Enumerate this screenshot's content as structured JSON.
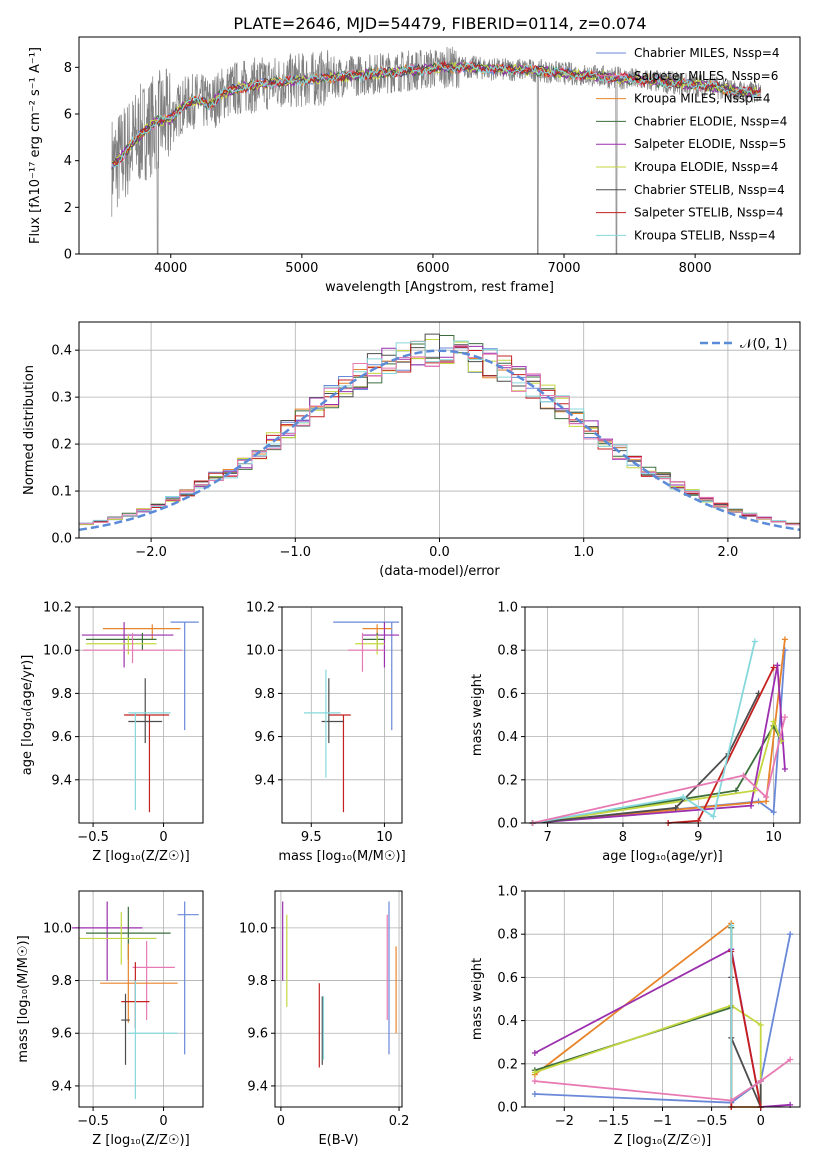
{
  "title": "PLATE=2646, MJD=54479, FIBERID=0114, z=0.074",
  "colors": [
    "#6a88d8",
    "#e8842a",
    "#3c6e3c",
    "#9b2fae",
    "#c4d640",
    "#4d4d4d",
    "#c42020",
    "#86d8dc",
    "#e87ab3",
    "#7f7f7f"
  ],
  "chart_data": [
    {
      "type": "line",
      "id": "spectrum",
      "xlabel": "wavelength [Angstrom, rest frame]",
      "ylabel": "Flux [fλ10⁻¹⁷ erg cm⁻² s⁻¹ A⁻¹]",
      "xlim": [
        3300,
        8800
      ],
      "ylim": [
        0,
        9.3
      ],
      "xticks": [
        4000,
        5000,
        6000,
        7000,
        8000
      ],
      "yticks": [
        0,
        2,
        4,
        6,
        8
      ],
      "legend_position": "right",
      "data_color": "#7f7f7f",
      "series": [
        {
          "name": "Chabrier MILES, N_SSP=4",
          "color": "#6a88d8"
        },
        {
          "name": "Salpeter MILES, N_SSP=6",
          "color": "#e87ab3"
        },
        {
          "name": "Kroupa MILES, N_SSP=4",
          "color": "#e8842a"
        },
        {
          "name": "Chabrier ELODIE, N_SSP=4",
          "color": "#3c6e3c"
        },
        {
          "name": "Salpeter ELODIE, N_SSP=5",
          "color": "#9b2fae"
        },
        {
          "name": "Kroupa ELODIE, N_SSP=4",
          "color": "#c4d640"
        },
        {
          "name": "Chabrier STELIB, N_SSP=4",
          "color": "#4d4d4d"
        },
        {
          "name": "Salpeter STELIB, N_SSP=4",
          "color": "#c42020"
        },
        {
          "name": "Kroupa STELIB, N_SSP=4",
          "color": "#86d8dc"
        }
      ],
      "continuum": [
        [
          3550,
          3.8
        ],
        [
          3600,
          4.0
        ],
        [
          3700,
          4.7
        ],
        [
          3800,
          5.3
        ],
        [
          3900,
          5.7
        ],
        [
          4000,
          5.8
        ],
        [
          4100,
          6.4
        ],
        [
          4200,
          6.6
        ],
        [
          4300,
          6.4
        ],
        [
          4400,
          6.9
        ],
        [
          4500,
          7.1
        ],
        [
          4700,
          7.3
        ],
        [
          4900,
          7.4
        ],
        [
          5100,
          7.5
        ],
        [
          5300,
          7.6
        ],
        [
          5500,
          7.7
        ],
        [
          5700,
          7.8
        ],
        [
          5900,
          7.9
        ],
        [
          6100,
          8.0
        ],
        [
          6300,
          8.0
        ],
        [
          6500,
          7.9
        ],
        [
          6700,
          7.9
        ],
        [
          6900,
          7.8
        ],
        [
          7100,
          7.7
        ],
        [
          7300,
          7.6
        ],
        [
          7500,
          7.5
        ],
        [
          7700,
          7.4
        ],
        [
          7900,
          7.3
        ],
        [
          8100,
          7.2
        ],
        [
          8300,
          7.0
        ],
        [
          8450,
          6.9
        ],
        [
          8500,
          7.0
        ]
      ]
    },
    {
      "type": "bar",
      "id": "residual-histogram",
      "xlabel": "(data-model)/error",
      "ylabel": "Normed distribution",
      "xlim": [
        -2.5,
        2.5
      ],
      "ylim": [
        0,
        0.46
      ],
      "xticks": [
        -2,
        -1,
        0,
        1,
        2
      ],
      "yticks": [
        0.0,
        0.1,
        0.2,
        0.3,
        0.4
      ],
      "grid": true,
      "legend_position": "top-right",
      "reference_curve": {
        "name": "𝒩(0, 1)",
        "mu": 0,
        "sigma": 1,
        "color": "#5b8bd8"
      },
      "bin_width": 0.1
    },
    {
      "type": "scatter",
      "id": "age-vs-Z",
      "xlabel": "Z [log₁₀(Z/Z☉)]",
      "ylabel": "age  [log₁₀(age/yr)]",
      "xlim": [
        -0.6,
        0.28
      ],
      "ylim": [
        9.2,
        10.2
      ],
      "xticks": [
        -0.5,
        0.0
      ],
      "yticks": [
        9.4,
        9.6,
        9.8,
        10.0,
        10.2
      ],
      "grid": true,
      "points": [
        {
          "x": 0.15,
          "y": 10.13,
          "xerr": [
            0.1,
            0.1
          ],
          "yerr": [
            0.5,
            0.0
          ],
          "color": "#6a88d8"
        },
        {
          "x": -0.08,
          "y": 10.1,
          "xerr": [
            0.35,
            0.2
          ],
          "yerr": [
            0.05,
            0.02
          ],
          "color": "#e8842a"
        },
        {
          "x": -0.28,
          "y": 10.07,
          "xerr": [
            0.3,
            0.35
          ],
          "yerr": [
            0.15,
            0.06
          ],
          "color": "#9b2fae"
        },
        {
          "x": -0.15,
          "y": 10.05,
          "xerr": [
            0.4,
            0.1
          ],
          "yerr": [
            0.05,
            0.03
          ],
          "color": "#3c6e3c"
        },
        {
          "x": -0.25,
          "y": 10.03,
          "xerr": [
            0.3,
            0.2
          ],
          "yerr": [
            0.05,
            0.04
          ],
          "color": "#c4d640"
        },
        {
          "x": -0.22,
          "y": 10.0,
          "xerr": [
            0.35,
            0.35
          ],
          "yerr": [
            0.06,
            0.08
          ],
          "color": "#e87ab3"
        },
        {
          "x": -0.1,
          "y": 9.7,
          "xerr": [
            0.18,
            0.14
          ],
          "yerr": [
            0.45,
            0.0
          ],
          "color": "#c42020"
        },
        {
          "x": -0.13,
          "y": 9.67,
          "xerr": [
            0.12,
            0.12
          ],
          "yerr": [
            0.1,
            0.2
          ],
          "color": "#4d4d4d"
        },
        {
          "x": -0.2,
          "y": 9.71,
          "xerr": [
            0.05,
            0.25
          ],
          "yerr": [
            0.45,
            0.0
          ],
          "color": "#86d8dc"
        }
      ]
    },
    {
      "type": "scatter",
      "id": "age-vs-mass",
      "xlabel": "mass [log₁₀(M/M☉)]",
      "ylabel": "",
      "xlim": [
        9.3,
        10.12
      ],
      "ylim": [
        9.2,
        10.2
      ],
      "xticks": [
        9.5,
        10.0
      ],
      "yticks": [
        9.4,
        9.6,
        9.8,
        10.0,
        10.2
      ],
      "grid": true,
      "points": [
        {
          "x": 10.05,
          "y": 10.13,
          "xerr": [
            0.4,
            0.05
          ],
          "yerr": [
            0.5,
            0.0
          ],
          "color": "#6a88d8"
        },
        {
          "x": 9.95,
          "y": 10.1,
          "xerr": [
            0.1,
            0.1
          ],
          "yerr": [
            0.05,
            0.02
          ],
          "color": "#e8842a"
        },
        {
          "x": 10.0,
          "y": 10.07,
          "xerr": [
            0.15,
            0.1
          ],
          "yerr": [
            0.15,
            0.06
          ],
          "color": "#9b2fae"
        },
        {
          "x": 9.95,
          "y": 10.05,
          "xerr": [
            0.1,
            0.05
          ],
          "yerr": [
            0.05,
            0.03
          ],
          "color": "#3c6e3c"
        },
        {
          "x": 9.95,
          "y": 10.03,
          "xerr": [
            0.15,
            0.05
          ],
          "yerr": [
            0.05,
            0.04
          ],
          "color": "#c4d640"
        },
        {
          "x": 9.85,
          "y": 10.0,
          "xerr": [
            0.1,
            0.15
          ],
          "yerr": [
            0.1,
            0.08
          ],
          "color": "#e87ab3"
        },
        {
          "x": 9.72,
          "y": 9.7,
          "xerr": [
            0.1,
            0.05
          ],
          "yerr": [
            0.45,
            0.0
          ],
          "color": "#c42020"
        },
        {
          "x": 9.62,
          "y": 9.67,
          "xerr": [
            0.05,
            0.1
          ],
          "yerr": [
            0.1,
            0.2
          ],
          "color": "#4d4d4d"
        },
        {
          "x": 9.6,
          "y": 9.71,
          "xerr": [
            0.15,
            0.1
          ],
          "yerr": [
            0.3,
            0.2
          ],
          "color": "#86d8dc"
        }
      ]
    },
    {
      "type": "line",
      "id": "mass-weight-vs-age",
      "xlabel": "age  [log₁₀(age/yr)]",
      "ylabel": "mass weight",
      "xlim": [
        6.7,
        10.35
      ],
      "ylim": [
        0,
        1
      ],
      "xticks": [
        7,
        8,
        9,
        10
      ],
      "yticks": [
        0.0,
        0.2,
        0.4,
        0.6,
        0.8,
        1.0
      ],
      "grid": true,
      "series": [
        {
          "color": "#6a88d8",
          "x": [
            6.8,
            9.8,
            10.0,
            10.15
          ],
          "y": [
            0.0,
            0.1,
            0.05,
            0.8
          ]
        },
        {
          "color": "#e8842a",
          "x": [
            6.8,
            9.9,
            10.15
          ],
          "y": [
            0.0,
            0.1,
            0.85
          ]
        },
        {
          "color": "#3c6e3c",
          "x": [
            6.8,
            9.5,
            10.0,
            10.1
          ],
          "y": [
            0.0,
            0.15,
            0.45,
            0.38
          ]
        },
        {
          "color": "#9b2fae",
          "x": [
            6.8,
            9.7,
            10.05,
            10.15
          ],
          "y": [
            0.0,
            0.08,
            0.73,
            0.25
          ]
        },
        {
          "color": "#c4d640",
          "x": [
            6.8,
            9.75,
            10.0,
            10.1
          ],
          "y": [
            0.0,
            0.15,
            0.47,
            0.38
          ]
        },
        {
          "color": "#4d4d4d",
          "x": [
            6.8,
            8.7,
            9.4,
            9.8
          ],
          "y": [
            0.0,
            0.07,
            0.32,
            0.6
          ]
        },
        {
          "color": "#c42020",
          "x": [
            8.6,
            9.0,
            10.0
          ],
          "y": [
            0.0,
            0.01,
            0.72
          ]
        },
        {
          "color": "#86d8dc",
          "x": [
            6.8,
            8.8,
            9.2,
            9.75
          ],
          "y": [
            0.0,
            0.12,
            0.03,
            0.84
          ]
        },
        {
          "color": "#e87ab3",
          "x": [
            6.8,
            9.6,
            9.9,
            10.15
          ],
          "y": [
            0.0,
            0.22,
            0.12,
            0.49
          ]
        }
      ]
    },
    {
      "type": "scatter",
      "id": "mass-vs-Z",
      "xlabel": "Z [log₁₀(Z/Z☉)]",
      "ylabel": "mass [log₁₀(M/M☉)]",
      "xlim": [
        -0.6,
        0.28
      ],
      "ylim": [
        9.32,
        10.14
      ],
      "xticks": [
        -0.5,
        0.0
      ],
      "yticks": [
        9.4,
        9.6,
        9.8,
        10.0
      ],
      "grid": true,
      "points": [
        {
          "x": 0.15,
          "y": 10.05,
          "xerr": [
            0.05,
            0.1
          ],
          "yerr": [
            0.53,
            0.05
          ],
          "color": "#6a88d8"
        },
        {
          "x": -0.4,
          "y": 10.0,
          "xerr": [
            0.25,
            0.25
          ],
          "yerr": [
            0.2,
            0.1
          ],
          "color": "#9b2fae"
        },
        {
          "x": -0.25,
          "y": 9.98,
          "xerr": [
            0.3,
            0.3
          ],
          "yerr": [
            0.1,
            0.1
          ],
          "color": "#3c6e3c"
        },
        {
          "x": -0.3,
          "y": 9.96,
          "xerr": [
            0.3,
            0.25
          ],
          "yerr": [
            0.1,
            0.1
          ],
          "color": "#c4d640"
        },
        {
          "x": -0.12,
          "y": 9.85,
          "xerr": [
            0.1,
            0.2
          ],
          "yerr": [
            0.2,
            0.1
          ],
          "color": "#e87ab3"
        },
        {
          "x": -0.25,
          "y": 9.79,
          "xerr": [
            0.2,
            0.35
          ],
          "yerr": [
            0.15,
            0.15
          ],
          "color": "#e8842a"
        },
        {
          "x": -0.2,
          "y": 9.72,
          "xerr": [
            0.1,
            0.1
          ],
          "yerr": [
            0.1,
            0.15
          ],
          "color": "#c42020"
        },
        {
          "x": -0.27,
          "y": 9.65,
          "xerr": [
            0.03,
            0.03
          ],
          "yerr": [
            0.17,
            0.1
          ],
          "color": "#4d4d4d"
        },
        {
          "x": -0.2,
          "y": 9.6,
          "xerr": [
            0.05,
            0.3
          ],
          "yerr": [
            0.25,
            0.2
          ],
          "color": "#86d8dc"
        }
      ]
    },
    {
      "type": "scatter",
      "id": "mass-vs-EBV",
      "xlabel": "E(B-V)",
      "ylabel": "",
      "xlim": [
        -0.01,
        0.205
      ],
      "ylim": [
        9.32,
        10.14
      ],
      "xticks": [
        0.0,
        0.2
      ],
      "yticks": [
        9.4,
        9.6,
        9.8,
        10.0
      ],
      "grid": true,
      "points": [
        {
          "x": 0.003,
          "y": 10.0,
          "yerr": [
            0.2,
            0.1
          ],
          "color": "#9b2fae"
        },
        {
          "x": 0.01,
          "y": 9.95,
          "yerr": [
            0.25,
            0.1
          ],
          "color": "#c4d640"
        },
        {
          "x": 0.065,
          "y": 9.62,
          "yerr": [
            0.15,
            0.17
          ],
          "color": "#c42020"
        },
        {
          "x": 0.07,
          "y": 9.6,
          "yerr": [
            0.12,
            0.14
          ],
          "color": "#4d4d4d"
        },
        {
          "x": 0.072,
          "y": 9.6,
          "yerr": [
            0.1,
            0.14
          ],
          "color": "#86d8dc"
        },
        {
          "x": 0.18,
          "y": 9.85,
          "yerr": [
            0.2,
            0.2
          ],
          "color": "#e87ab3"
        },
        {
          "x": 0.183,
          "y": 9.8,
          "yerr": [
            0.28,
            0.3
          ],
          "color": "#6a88d8"
        },
        {
          "x": 0.195,
          "y": 9.75,
          "yerr": [
            0.15,
            0.18
          ],
          "color": "#e8842a"
        }
      ]
    },
    {
      "type": "line",
      "id": "mass-weight-vs-Z",
      "xlabel": "Z [log₁₀(Z/Z☉)]",
      "ylabel": "mass weight",
      "xlim": [
        -2.4,
        0.4
      ],
      "ylim": [
        0,
        1
      ],
      "xticks": [
        -2.0,
        -1.5,
        -1.0,
        -0.5,
        0.0
      ],
      "yticks": [
        0.0,
        0.2,
        0.4,
        0.6,
        0.8,
        1.0
      ],
      "grid": true,
      "series": [
        {
          "color": "#6a88d8",
          "x": [
            -2.3,
            -0.3,
            0.0,
            0.3
          ],
          "y": [
            0.06,
            0.02,
            0.12,
            0.8
          ]
        },
        {
          "color": "#e8842a",
          "x": [
            -2.3,
            -0.3,
            -0.3,
            0.0
          ],
          "y": [
            0.15,
            0.85,
            0.0,
            0.0
          ]
        },
        {
          "color": "#3c6e3c",
          "x": [
            -2.3,
            -0.3,
            -0.3
          ],
          "y": [
            0.17,
            0.46,
            0.83
          ]
        },
        {
          "color": "#9b2fae",
          "x": [
            -2.3,
            -0.3,
            0.0,
            0.3
          ],
          "y": [
            0.25,
            0.73,
            0.0,
            0.01
          ]
        },
        {
          "color": "#c4d640",
          "x": [
            -2.3,
            -0.3,
            0.0,
            0.0
          ],
          "y": [
            0.16,
            0.47,
            0.38,
            0.0
          ]
        },
        {
          "color": "#4d4d4d",
          "x": [
            -0.3,
            -0.3,
            0.0,
            0.0
          ],
          "y": [
            0.6,
            0.32,
            0.0,
            0.12
          ]
        },
        {
          "color": "#c42020",
          "x": [
            -0.3,
            -0.3,
            0.0
          ],
          "y": [
            0.0,
            0.72,
            0.0
          ]
        },
        {
          "color": "#86d8dc",
          "x": [
            -0.3,
            -0.3,
            0.0
          ],
          "y": [
            0.84,
            0.03,
            0.12
          ]
        },
        {
          "color": "#e87ab3",
          "x": [
            -2.3,
            -0.3,
            0.0,
            0.3
          ],
          "y": [
            0.12,
            0.03,
            0.12,
            0.22
          ]
        }
      ]
    }
  ]
}
